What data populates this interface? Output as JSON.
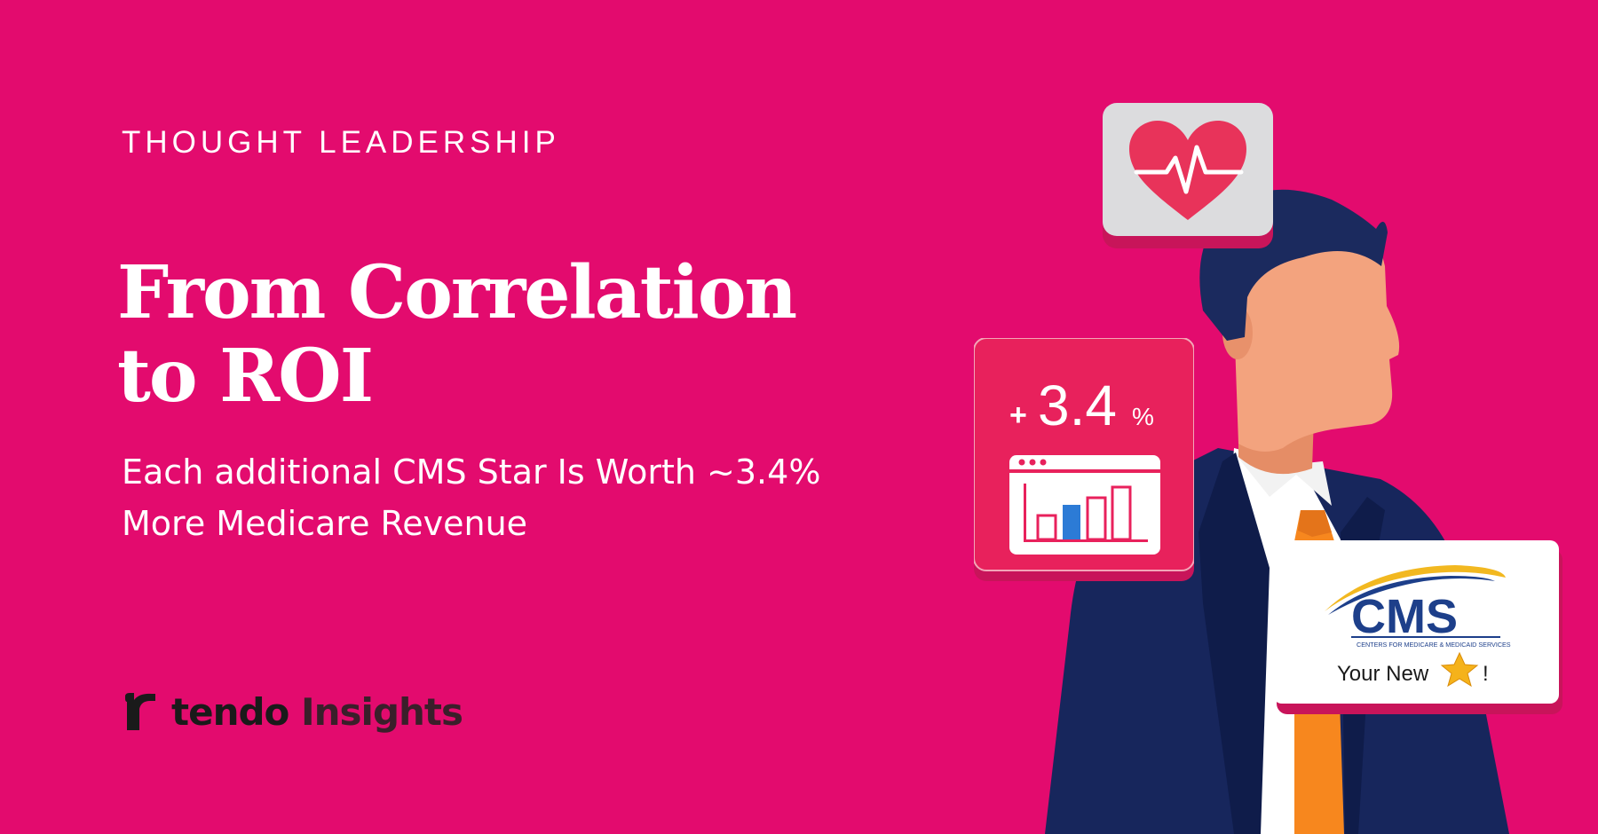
{
  "eyebrow": "THOUGHT LEADERSHIP",
  "title": {
    "line1": "From Correlation",
    "line2": "to ROI"
  },
  "subtitle": {
    "line1": "Each additional CMS Star Is Worth ~3.4%",
    "line2": "More Medicare Revenue"
  },
  "brand": {
    "name_part1": "tendo",
    "name_part2": "Insights"
  },
  "stat_card": {
    "prefix": "+",
    "value": "3.4",
    "unit": "%"
  },
  "cms_card": {
    "logo_text": "CMS",
    "logo_subtext": "CENTERS FOR MEDICARE & MEDICAID SERVICES",
    "caption": "Your New",
    "caption_end": "!"
  },
  "colors": {
    "background": "#e30b6e",
    "card_pink": "#e8215c",
    "suit": "#17265c",
    "tie": "#f7871e",
    "skin": "#f3a37e",
    "cms_blue": "#1d3f8a",
    "cms_gold": "#f2b820",
    "star": "#f5b21a"
  },
  "icons": {
    "heart": "heart-pulse-icon",
    "chart": "bar-chart-window-icon",
    "star": "star-icon",
    "brand": "tendo-logo-mark"
  }
}
